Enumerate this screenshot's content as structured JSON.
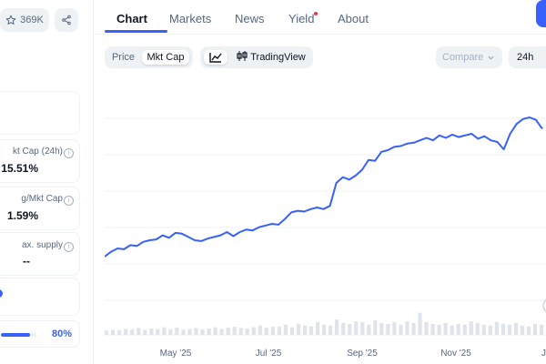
{
  "sidebar": {
    "watchlist_count": "369K",
    "cards": [
      {
        "label": "kt Cap (24h)",
        "value": "15.51%"
      },
      {
        "label": "g/Mkt Cap",
        "value": "1.59%"
      },
      {
        "label": "ax. supply",
        "value": "--"
      }
    ],
    "progress": {
      "label": "80%",
      "value": 0.8
    }
  },
  "tabs": [
    {
      "label": "Chart",
      "active": true
    },
    {
      "label": "Markets"
    },
    {
      "label": "News"
    },
    {
      "label": "Yield",
      "has_notification": true
    },
    {
      "label": "About"
    }
  ],
  "toolbar": {
    "price_label": "Price",
    "mktcap_label": "Mkt Cap",
    "tradingview_label": "TradingView",
    "compare_label": "Compare",
    "interval_label": "24h"
  },
  "colors": {
    "accent": "#3861fb",
    "line": "#3861fb",
    "notify": "#ea3943"
  },
  "chart_data": {
    "type": "line",
    "x_ticks": [
      "May '25",
      "Jul '25",
      "Sep '25",
      "Nov '25",
      "Jan"
    ],
    "series": [
      {
        "values": [
          0.2,
          0.26,
          0.3,
          0.29,
          0.34,
          0.33,
          0.38,
          0.4,
          0.41,
          0.46,
          0.43,
          0.49,
          0.48,
          0.44,
          0.4,
          0.39,
          0.42,
          0.44,
          0.46,
          0.5,
          0.45,
          0.5,
          0.53,
          0.52,
          0.56,
          0.58,
          0.6,
          0.59,
          0.66,
          0.74,
          0.76,
          0.75,
          0.78,
          0.8,
          0.78,
          0.82,
          1.1,
          1.17,
          1.14,
          1.19,
          1.26,
          1.38,
          1.37,
          1.48,
          1.5,
          1.54,
          1.55,
          1.58,
          1.59,
          1.62,
          1.65,
          1.62,
          1.68,
          1.65,
          1.69,
          1.66,
          1.68,
          1.7,
          1.64,
          1.67,
          1.62,
          1.6,
          1.51,
          1.7,
          1.82,
          1.88,
          1.9,
          1.87,
          1.76
        ]
      }
    ],
    "volume_series": [
      0.5,
      0.6,
      0.55,
      0.7,
      0.65,
      0.8,
      0.6,
      0.75,
      0.7,
      0.9,
      0.65,
      0.85,
      0.6,
      0.7,
      0.8,
      0.65,
      0.75,
      0.9,
      0.7,
      0.85,
      0.95,
      0.8,
      0.75,
      0.9,
      1.1,
      0.85,
      0.95,
      1.0,
      1.2,
      0.9,
      1.3,
      1.1,
      1.0,
      1.5,
      1.2,
      1.1,
      1.8,
      1.4,
      1.3,
      1.6,
      1.5,
      1.2,
      1.7,
      1.4,
      1.3,
      1.5,
      1.2,
      1.6,
      1.4,
      2.6,
      1.5,
      1.3,
      1.2,
      1.4,
      1.1,
      1.3,
      1.2,
      1.6,
      1.4,
      1.2,
      1.1,
      1.5,
      1.3,
      1.2,
      1.4,
      1.1,
      1.0,
      1.3,
      1.2
    ],
    "grid": true
  }
}
